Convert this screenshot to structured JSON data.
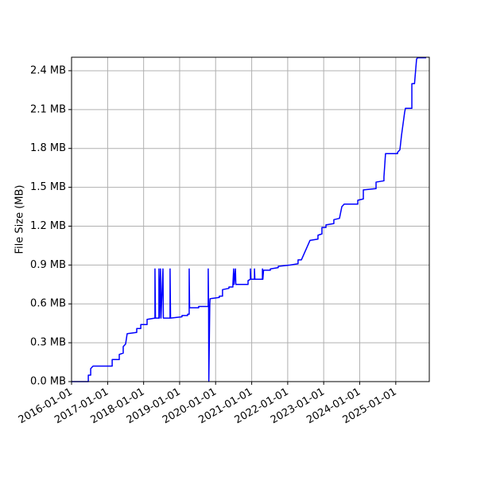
{
  "chart_data": {
    "type": "line",
    "y_label": "File Size (MB)",
    "color": "#0000ff",
    "grid": true,
    "x": [
      "2016-01-01",
      "2016-06-19",
      "2016-06-19",
      "2016-07-13",
      "2016-07-13",
      "2016-08-06",
      "2017-02-16",
      "2017-02-16",
      "2017-04-29",
      "2017-04-29",
      "2017-06-08",
      "2017-06-08",
      "2017-07-02",
      "2017-07-18",
      "2017-10-23",
      "2017-10-23",
      "2017-12-03",
      "2017-12-03",
      "2018-02-05",
      "2018-02-05",
      "2018-04-26",
      "2018-04-26",
      "2018-05-01",
      "2018-06-05",
      "2018-06-05",
      "2018-06-10",
      "2018-06-21",
      "2018-06-26",
      "2018-07-16",
      "2018-07-20",
      "2018-09-26",
      "2018-09-26",
      "2018-10-01",
      "2019-01-25",
      "2019-01-25",
      "2019-03-23",
      "2019-03-23",
      "2019-04-08",
      "2019-04-08",
      "2019-04-12",
      "2019-07-13",
      "2019-07-13",
      "2019-10-18",
      "2019-10-18",
      "2019-10-22",
      "2019-10-24",
      "2019-11-03",
      "2019-11-06",
      "2020-02-08",
      "2020-02-08",
      "2020-03-11",
      "2020-03-11",
      "2020-05-15",
      "2020-05-15",
      "2020-06-24",
      "2020-06-24",
      "2020-07-02",
      "2020-07-06",
      "2020-07-20",
      "2020-07-24",
      "2020-11-25",
      "2020-11-25",
      "2020-12-19",
      "2020-12-19",
      "2020-12-23",
      "2021-01-29",
      "2021-01-29",
      "2021-02-02",
      "2021-04-20",
      "2021-04-20",
      "2021-04-24",
      "2021-05-01",
      "2021-07-09",
      "2021-07-09",
      "2021-09-27",
      "2021-09-27",
      "2022-01-26",
      "2022-04-16",
      "2022-04-16",
      "2022-05-20",
      "2022-08-15",
      "2022-11-04",
      "2022-11-04",
      "2022-12-14",
      "2022-12-14",
      "2023-01-24",
      "2023-01-24",
      "2023-04-14",
      "2023-04-14",
      "2023-06-10",
      "2023-07-04",
      "2023-07-28",
      "2023-12-13",
      "2023-12-13",
      "2024-02-07",
      "2024-02-07",
      "2024-06-15",
      "2024-06-15",
      "2024-09-03",
      "2024-09-03",
      "2024-09-19",
      "2025-01-19",
      "2025-01-19",
      "2025-02-12",
      "2025-02-28",
      "2025-04-01",
      "2025-04-09",
      "2025-06-13",
      "2025-06-13",
      "2025-07-10",
      "2025-07-31",
      "2025-08-10",
      "2025-11-05"
    ],
    "values": [
      0,
      0,
      0.05,
      0.05,
      0.1,
      0.12,
      0.12,
      0.17,
      0.17,
      0.21,
      0.22,
      0.27,
      0.29,
      0.37,
      0.38,
      0.41,
      0.41,
      0.44,
      0.44,
      0.48,
      0.49,
      0.87,
      0.49,
      0.49,
      0.87,
      0.49,
      0.87,
      0.49,
      0.87,
      0.49,
      0.49,
      0.87,
      0.49,
      0.5,
      0.51,
      0.51,
      0.52,
      0.52,
      0.87,
      0.57,
      0.57,
      0.58,
      0.58,
      0.87,
      0.58,
      0,
      0.6,
      0.64,
      0.65,
      0.66,
      0.66,
      0.71,
      0.72,
      0.73,
      0.73,
      0.75,
      0.87,
      0.75,
      0.87,
      0.75,
      0.75,
      0.78,
      0.79,
      0.87,
      0.79,
      0.79,
      0.87,
      0.79,
      0.79,
      0.87,
      0.79,
      0.86,
      0.86,
      0.87,
      0.88,
      0.89,
      0.9,
      0.91,
      0.94,
      0.94,
      1.09,
      1.1,
      1.13,
      1.14,
      1.19,
      1.19,
      1.21,
      1.22,
      1.25,
      1.26,
      1.35,
      1.37,
      1.37,
      1.4,
      1.41,
      1.48,
      1.49,
      1.54,
      1.55,
      1.58,
      1.76,
      1.76,
      1.77,
      1.79,
      1.9,
      2.08,
      2.11,
      2.11,
      2.3,
      2.3,
      2.49,
      2.5,
      2.5
    ],
    "xlim": [
      "2016-01-01",
      "2025-12-07"
    ],
    "xticks": [
      "2016-01-01",
      "2017-01-01",
      "2018-01-01",
      "2019-01-01",
      "2020-01-01",
      "2021-01-01",
      "2022-01-01",
      "2023-01-01",
      "2024-01-01",
      "2025-01-01"
    ],
    "ylim": [
      0,
      2.504
    ],
    "yticks": [
      {
        "value": 0,
        "label": "0.0 MB"
      },
      {
        "value": 0.3,
        "label": "0.3 MB"
      },
      {
        "value": 0.6,
        "label": "0.6 MB"
      },
      {
        "value": 0.9,
        "label": "0.9 MB"
      },
      {
        "value": 1.2,
        "label": "1.2 MB"
      },
      {
        "value": 1.5,
        "label": "1.5 MB"
      },
      {
        "value": 1.8,
        "label": "1.8 MB"
      },
      {
        "value": 2.1,
        "label": "2.1 MB"
      },
      {
        "value": 2.4,
        "label": "2.4 MB"
      }
    ]
  }
}
